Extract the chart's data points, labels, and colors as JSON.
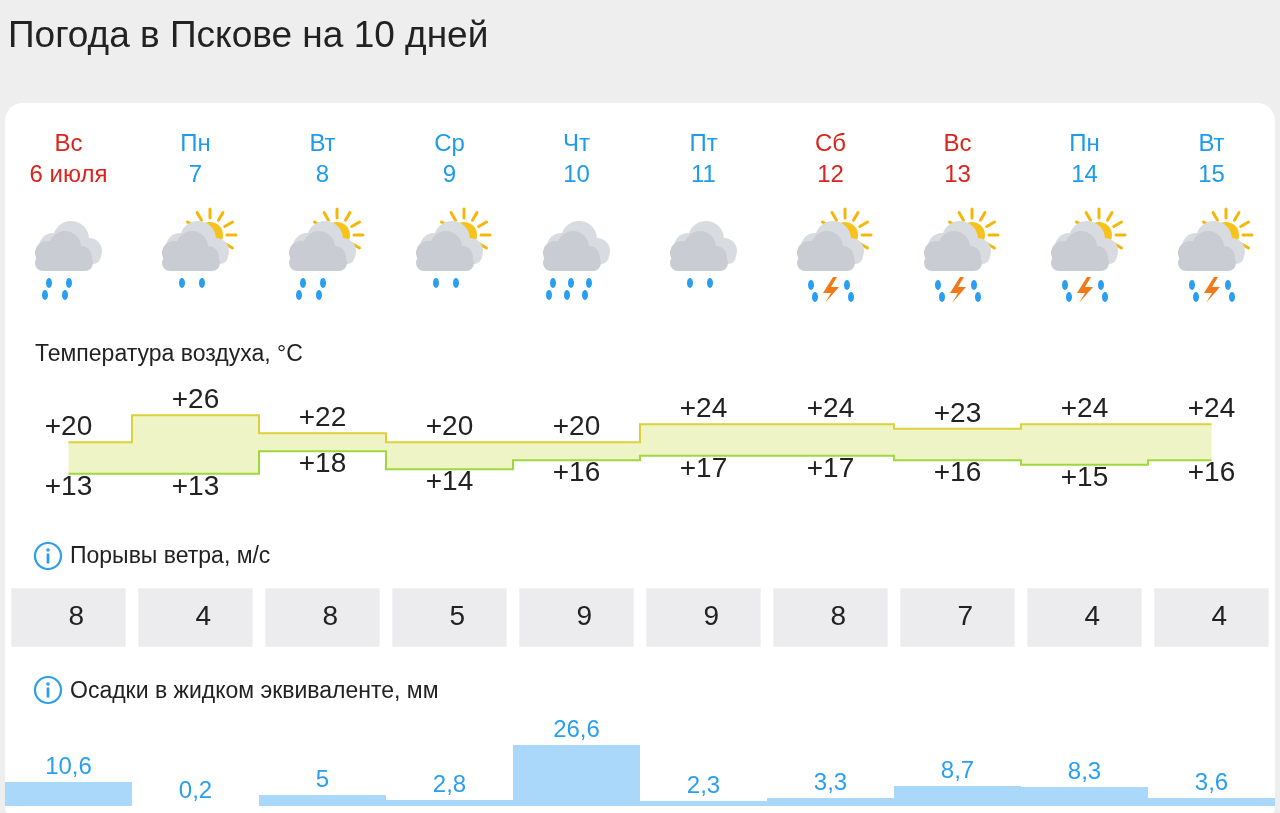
{
  "chart_data": [
    {
      "type": "step",
      "title": "Погода в Пскове на 10 дней",
      "ylabel": "Температура воздуха, °C",
      "categories": [
        "Вс\n6 июля",
        "Пн\n7",
        "Вт\n8",
        "Ср\n9",
        "Чт\n10",
        "Пт\n11",
        "Сб\n12",
        "Вс\n13",
        "Пн\n14",
        "Вт\n15"
      ],
      "tick_labels": "x",
      "series": [
        {
          "color": "#dcd13a",
          "values": [
            20,
            26,
            22,
            20,
            20,
            24,
            24,
            23,
            24,
            24
          ],
          "value_labels": [
            "+20",
            "+26",
            "+22",
            "+20",
            "+20",
            "+24",
            "+24",
            "+23",
            "+24",
            "+24"
          ]
        },
        {
          "color": "#9fd83c",
          "values": [
            13,
            13,
            18,
            14,
            16,
            17,
            17,
            16,
            15,
            16
          ],
          "value_labels": [
            "+13",
            "+13",
            "+18",
            "+14",
            "+16",
            "+17",
            "+17",
            "+16",
            "+15",
            "+16"
          ]
        }
      ]
    },
    {
      "type": "other",
      "title": "Порывы ветра, м/с",
      "values": [
        8,
        4,
        8,
        5,
        9,
        9,
        8,
        7,
        4,
        4
      ],
      "data_labels": true
    },
    {
      "type": "bar",
      "title": "Осадки в жидком эквиваленте, мм",
      "categories": [
        null,
        null,
        null,
        null,
        null,
        null,
        null,
        null,
        null,
        null
      ],
      "color": "#a9d8fb",
      "values": [
        10.6,
        0.2,
        5,
        2.8,
        26.6,
        2.3,
        3.3,
        8.7,
        8.3,
        3.6
      ],
      "value_labels": [
        "10,6",
        "0,2",
        "5",
        "2,8",
        "26,6",
        "2,3",
        "3,3",
        "8,7",
        "8,3",
        "3,6"
      ]
    }
  ]
}
